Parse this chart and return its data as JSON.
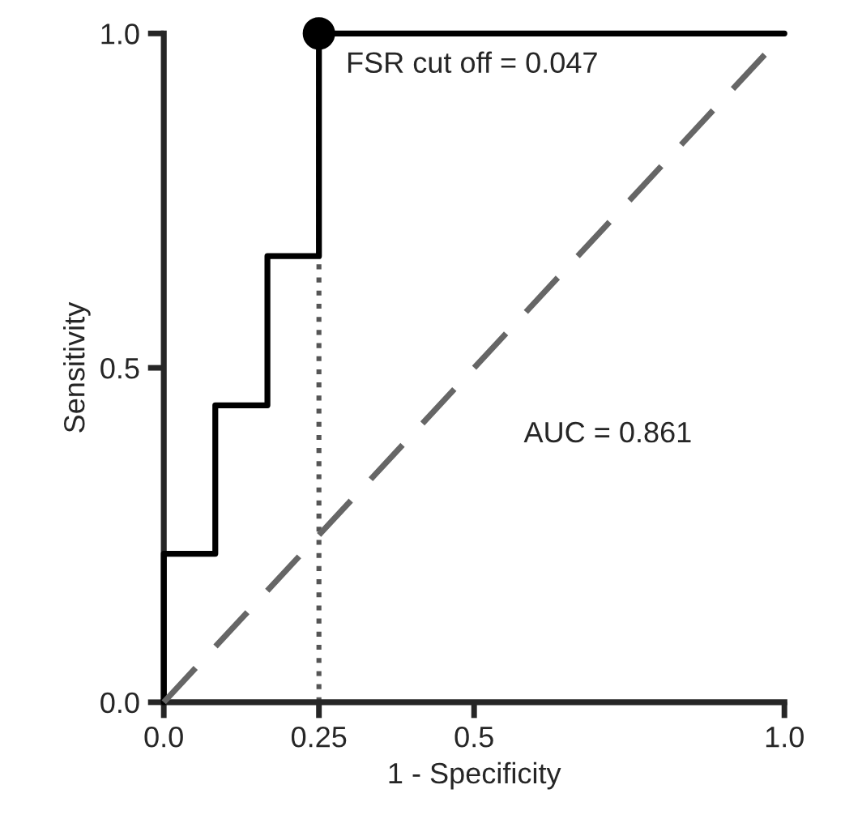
{
  "chart_data": {
    "type": "line",
    "xlabel": "1 - Specificity",
    "ylabel": "Sensitivity",
    "xlim": [
      0.0,
      1.0
    ],
    "ylim": [
      0.0,
      1.0
    ],
    "xticks": [
      {
        "value": 0,
        "label": "0.0"
      },
      0.25,
      0.5,
      {
        "value": 1,
        "label": "1.0"
      }
    ],
    "yticks": [
      {
        "value": 0,
        "label": "0.0"
      },
      0.5,
      {
        "value": 1,
        "label": "1.0"
      }
    ],
    "grid": false,
    "legend": false,
    "series": [
      {
        "color": "#000000",
        "line_style": "solid",
        "x": [
          0.0,
          0.0,
          0.083,
          0.083,
          0.167,
          0.167,
          0.25,
          0.25,
          1.0
        ],
        "values": [
          0.0,
          0.222,
          0.222,
          0.444,
          0.444,
          0.667,
          0.667,
          1.0,
          1.0
        ]
      },
      {
        "type": "line",
        "color": "#666666",
        "line_style": "dashed",
        "x": [
          0.0,
          1.0
        ],
        "values": [
          0.0,
          1.0
        ]
      },
      {
        "type": "scatter",
        "color": "#000000",
        "marker": "circle",
        "x": [
          0.25
        ],
        "values": [
          1.0
        ]
      }
    ],
    "ref_lines": [
      {
        "axis": "x",
        "value": 0.25,
        "color": "#555555",
        "line_style": "dotted"
      }
    ],
    "annotations": [
      {
        "text": "FSR cut off = 0.047",
        "x": 0.25,
        "y": 1.0
      },
      "AUC = 0.861"
    ]
  }
}
